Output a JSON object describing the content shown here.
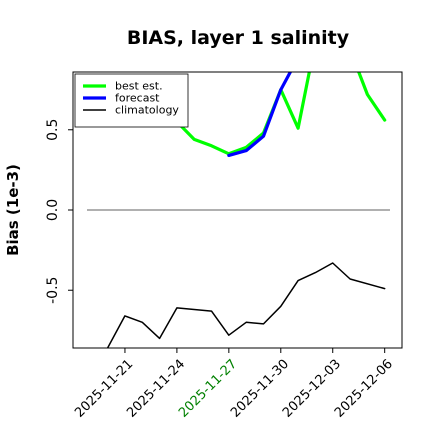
{
  "chart_data": {
    "type": "line",
    "title": "BIAS, layer 1 salinity",
    "xlabel": "",
    "ylabel": "Bias (1e-3)",
    "ylim": [
      -0.86,
      0.86
    ],
    "xlim": [
      "2025-11-18",
      "2025-12-07"
    ],
    "x_ticks": [
      "2025-11-21",
      "2025-11-24",
      "2025-11-27",
      "2025-11-30",
      "2025-12-03",
      "2025-12-06"
    ],
    "x_tick_colors": [
      "#000000",
      "#000000",
      "#008000",
      "#000000",
      "#000000",
      "#000000"
    ],
    "y_ticks": [
      -0.5,
      0.0,
      0.5
    ],
    "y_tick_labels": [
      "-0.5",
      "0.0",
      "0.5"
    ],
    "grid": false,
    "legend_position": "top-left",
    "reference_line": {
      "y": 0.0,
      "color": "#808080"
    },
    "series": [
      {
        "name": "best est.",
        "color": "#00ff00",
        "x": [
          "2025-11-24",
          "2025-11-25",
          "2025-11-26",
          "2025-11-27",
          "2025-11-28",
          "2025-11-29",
          "2025-11-30",
          "2025-12-01",
          "2025-12-02",
          "2025-12-03",
          "2025-12-04",
          "2025-12-05",
          "2025-12-06"
        ],
        "y": [
          0.55,
          0.44,
          0.4,
          0.35,
          0.39,
          0.48,
          0.75,
          0.51,
          1.05,
          1.2,
          1.0,
          0.72,
          0.56
        ]
      },
      {
        "name": "forecast",
        "color": "#0000ff",
        "x": [
          "2025-11-27",
          "2025-11-28",
          "2025-11-29",
          "2025-11-30",
          "2025-12-01"
        ],
        "y": [
          0.34,
          0.37,
          0.46,
          0.75,
          0.95
        ]
      },
      {
        "name": "climatology",
        "color": "#000000",
        "x": [
          "2025-11-20",
          "2025-11-21",
          "2025-11-22",
          "2025-11-23",
          "2025-11-24",
          "2025-11-26",
          "2025-11-27",
          "2025-11-28",
          "2025-11-29",
          "2025-11-30",
          "2025-12-01",
          "2025-12-02",
          "2025-12-03",
          "2025-12-04",
          "2025-12-06"
        ],
        "y": [
          -0.86,
          -0.66,
          -0.7,
          -0.8,
          -0.61,
          -0.63,
          -0.78,
          -0.7,
          -0.71,
          -0.6,
          -0.44,
          -0.39,
          -0.33,
          -0.43,
          -0.49
        ]
      }
    ]
  }
}
